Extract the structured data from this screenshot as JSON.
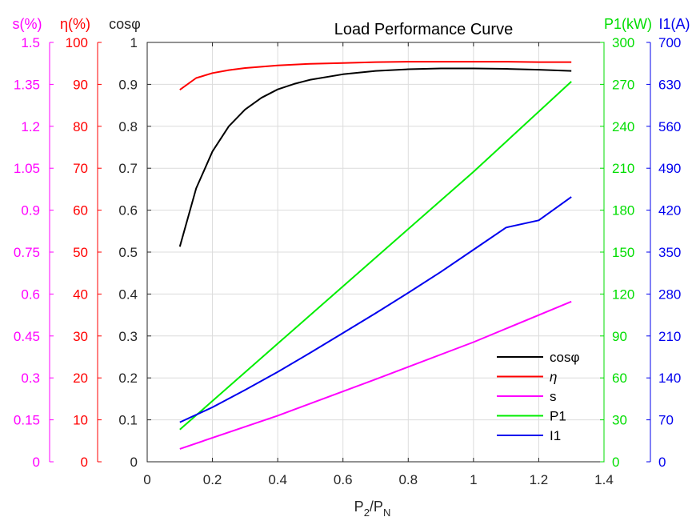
{
  "chart_data": {
    "type": "line",
    "title": "Load Performance Curve",
    "xlabel": {
      "main": "P",
      "sub1": "2",
      "slash": "/P",
      "sub2": "N"
    },
    "xlim": [
      0,
      1.4
    ],
    "xticks": [
      "0",
      "0.2",
      "0.4",
      "0.6",
      "0.8",
      "1",
      "1.2",
      "1.4"
    ],
    "axes": [
      {
        "id": "s",
        "label": "s(%)",
        "side": "left",
        "color": "#ff00ff",
        "ylim": [
          0,
          1.5
        ],
        "ticks": [
          "0",
          "0.15",
          "0.3",
          "0.45",
          "0.6",
          "0.75",
          "0.9",
          "1.05",
          "1.2",
          "1.35",
          "1.5"
        ]
      },
      {
        "id": "eta",
        "label": "η(%)",
        "side": "left",
        "color": "#ff0000",
        "ylim": [
          0,
          100
        ],
        "ticks": [
          "0",
          "10",
          "20",
          "30",
          "40",
          "50",
          "60",
          "70",
          "80",
          "90",
          "100"
        ]
      },
      {
        "id": "cos",
        "label": "cosφ",
        "side": "left",
        "color": "#262626",
        "ylim": [
          0,
          1
        ],
        "ticks": [
          "0",
          "0.1",
          "0.2",
          "0.3",
          "0.4",
          "0.5",
          "0.6",
          "0.7",
          "0.8",
          "0.9",
          "1"
        ]
      },
      {
        "id": "p1",
        "label": "P1(kW)",
        "side": "right",
        "color": "#00dd00",
        "ylim": [
          0,
          300
        ],
        "ticks": [
          "0",
          "30",
          "60",
          "90",
          "120",
          "150",
          "180",
          "210",
          "240",
          "270",
          "300"
        ]
      },
      {
        "id": "i1",
        "label": "I1(A)",
        "side": "right",
        "color": "#0000ee",
        "ylim": [
          0,
          700
        ],
        "ticks": [
          "0",
          "70",
          "140",
          "210",
          "280",
          "350",
          "420",
          "490",
          "560",
          "630",
          "700"
        ]
      }
    ],
    "grid": true,
    "legend_position": "bottom-right",
    "series": [
      {
        "name": "cosφ",
        "axis": "cos",
        "color": "#000000",
        "x": [
          0.1,
          0.15,
          0.2,
          0.25,
          0.3,
          0.35,
          0.4,
          0.45,
          0.5,
          0.6,
          0.7,
          0.8,
          0.9,
          1.0,
          1.1,
          1.2,
          1.3
        ],
        "y": [
          0.513,
          0.652,
          0.74,
          0.8,
          0.84,
          0.868,
          0.888,
          0.901,
          0.911,
          0.924,
          0.932,
          0.936,
          0.938,
          0.938,
          0.937,
          0.935,
          0.932
        ]
      },
      {
        "name": "η",
        "axis": "eta",
        "color": "#ff0000",
        "x": [
          0.1,
          0.15,
          0.2,
          0.25,
          0.3,
          0.35,
          0.4,
          0.5,
          0.6,
          0.7,
          0.8,
          0.9,
          1.0,
          1.1,
          1.2,
          1.3
        ],
        "y": [
          88.7,
          91.5,
          92.7,
          93.4,
          93.9,
          94.2,
          94.5,
          94.9,
          95.1,
          95.3,
          95.4,
          95.4,
          95.4,
          95.4,
          95.3,
          95.3
        ]
      },
      {
        "name": "s",
        "axis": "s",
        "color": "#ff00ff",
        "x": [
          0.1,
          0.4,
          0.7,
          1.0,
          1.3
        ],
        "y": [
          0.046,
          0.165,
          0.295,
          0.428,
          0.573
        ]
      },
      {
        "name": "P1",
        "axis": "p1",
        "color": "#00ee00",
        "x": [
          0.1,
          0.4,
          0.7,
          1.0,
          1.3
        ],
        "y": [
          23,
          84.5,
          146,
          207.5,
          272
        ]
      },
      {
        "name": "I1",
        "axis": "i1",
        "color": "#0000ee",
        "x": [
          0.1,
          0.2,
          0.3,
          0.4,
          0.5,
          0.6,
          0.7,
          0.8,
          0.9,
          1.0,
          1.1,
          1.2,
          1.3
        ],
        "y": [
          66,
          91,
          120,
          150,
          182,
          215,
          248,
          282,
          317,
          354,
          391,
          403,
          442
        ]
      }
    ]
  }
}
